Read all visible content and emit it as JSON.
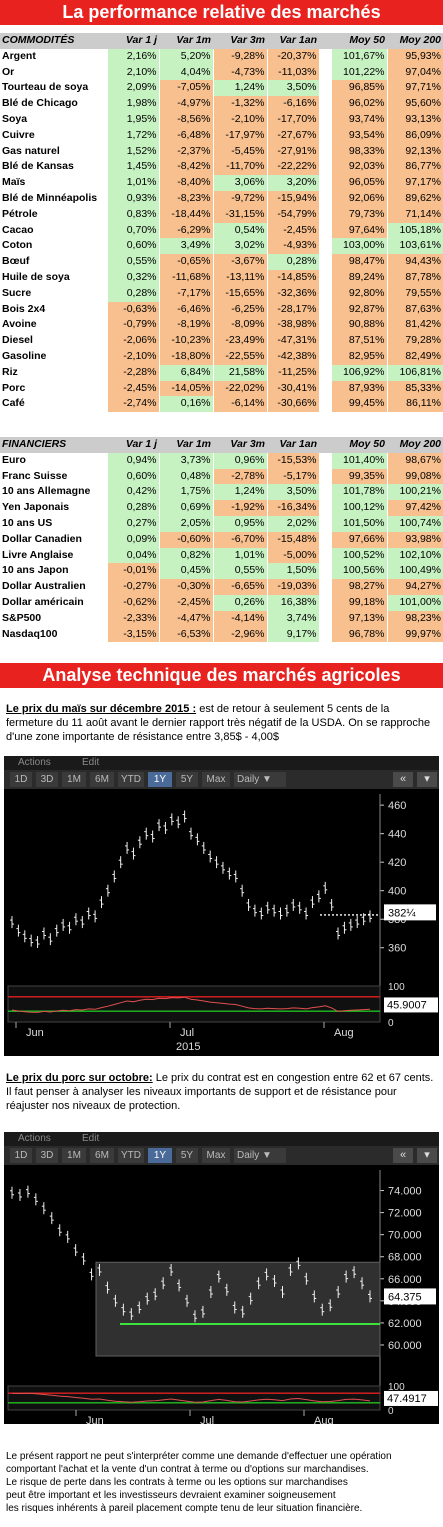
{
  "title": "La performance relative des marchés",
  "commodities": {
    "header": [
      "COMMODITÉS",
      "Var 1 j",
      "Var 1m",
      "Var 3m",
      "Var 1an",
      "",
      "Moy 50",
      "Moy 200"
    ],
    "rows": [
      [
        "Argent",
        "2,16%",
        "5,20%",
        "-9,28%",
        "-20,37%",
        "101,67%",
        "95,93%"
      ],
      [
        "Or",
        "2,10%",
        "4,04%",
        "-4,73%",
        "-11,03%",
        "101,22%",
        "97,04%"
      ],
      [
        "Tourteau de soya",
        "2,09%",
        "-7,05%",
        "1,24%",
        "3,50%",
        "96,85%",
        "97,71%"
      ],
      [
        "Blé de Chicago",
        "1,98%",
        "-4,97%",
        "-1,32%",
        "-6,16%",
        "96,02%",
        "95,60%"
      ],
      [
        "Soya",
        "1,95%",
        "-8,56%",
        "-2,10%",
        "-17,70%",
        "93,74%",
        "93,13%"
      ],
      [
        "Cuivre",
        "1,72%",
        "-6,48%",
        "-17,97%",
        "-27,67%",
        "93,54%",
        "86,09%"
      ],
      [
        "Gas naturel",
        "1,52%",
        "-2,37%",
        "-5,45%",
        "-27,91%",
        "98,33%",
        "92,13%"
      ],
      [
        "Blé de Kansas",
        "1,45%",
        "-8,42%",
        "-11,70%",
        "-22,22%",
        "92,03%",
        "86,77%"
      ],
      [
        "Maïs",
        "1,01%",
        "-8,40%",
        "3,06%",
        "3,20%",
        "96,05%",
        "97,17%"
      ],
      [
        "Blé de Minnéapolis",
        "0,93%",
        "-8,23%",
        "-9,72%",
        "-15,94%",
        "92,06%",
        "89,62%"
      ],
      [
        "Pétrole",
        "0,83%",
        "-18,44%",
        "-31,15%",
        "-54,79%",
        "79,73%",
        "71,14%"
      ],
      [
        "Cacao",
        "0,70%",
        "-6,29%",
        "0,54%",
        "-2,45%",
        "97,64%",
        "105,18%"
      ],
      [
        "Coton",
        "0,60%",
        "3,49%",
        "3,02%",
        "-4,93%",
        "103,00%",
        "103,61%"
      ],
      [
        "Bœuf",
        "0,55%",
        "-0,65%",
        "-3,67%",
        "0,28%",
        "98,47%",
        "94,43%"
      ],
      [
        "Huile de soya",
        "0,32%",
        "-11,68%",
        "-13,11%",
        "-14,85%",
        "89,24%",
        "87,78%"
      ],
      [
        "Sucre",
        "0,28%",
        "-7,17%",
        "-15,65%",
        "-32,36%",
        "92,80%",
        "79,55%"
      ],
      [
        "Bois 2x4",
        "-0,63%",
        "-6,46%",
        "-6,25%",
        "-28,17%",
        "92,87%",
        "87,63%"
      ],
      [
        "Avoine",
        "-0,79%",
        "-8,19%",
        "-8,09%",
        "-38,98%",
        "90,88%",
        "81,42%"
      ],
      [
        "Diesel",
        "-2,06%",
        "-10,23%",
        "-23,49%",
        "-47,31%",
        "87,51%",
        "79,28%"
      ],
      [
        "Gasoline",
        "-2,10%",
        "-18,80%",
        "-22,55%",
        "-42,38%",
        "82,95%",
        "82,49%"
      ],
      [
        "Riz",
        "-2,28%",
        "6,84%",
        "21,58%",
        "-11,25%",
        "106,92%",
        "106,81%"
      ],
      [
        "Porc",
        "-2,45%",
        "-14,05%",
        "-22,02%",
        "-30,41%",
        "87,93%",
        "85,33%"
      ],
      [
        "Café",
        "-2,74%",
        "0,16%",
        "-6,14%",
        "-30,66%",
        "99,45%",
        "86,11%"
      ]
    ],
    "colors": [
      [
        "g",
        "g",
        "o",
        "o",
        "g",
        "o"
      ],
      [
        "g",
        "g",
        "o",
        "o",
        "g",
        "o"
      ],
      [
        "g",
        "o",
        "g",
        "g",
        "o",
        "o"
      ],
      [
        "g",
        "o",
        "o",
        "o",
        "o",
        "o"
      ],
      [
        "g",
        "o",
        "o",
        "o",
        "o",
        "o"
      ],
      [
        "g",
        "o",
        "o",
        "o",
        "o",
        "o"
      ],
      [
        "g",
        "o",
        "o",
        "o",
        "o",
        "o"
      ],
      [
        "g",
        "o",
        "o",
        "o",
        "o",
        "o"
      ],
      [
        "g",
        "o",
        "g",
        "g",
        "o",
        "o"
      ],
      [
        "g",
        "o",
        "o",
        "o",
        "o",
        "o"
      ],
      [
        "g",
        "o",
        "o",
        "o",
        "o",
        "o"
      ],
      [
        "g",
        "o",
        "g",
        "o",
        "o",
        "g"
      ],
      [
        "g",
        "g",
        "g",
        "o",
        "g",
        "g"
      ],
      [
        "g",
        "o",
        "o",
        "g",
        "o",
        "o"
      ],
      [
        "g",
        "o",
        "o",
        "o",
        "o",
        "o"
      ],
      [
        "g",
        "o",
        "o",
        "o",
        "o",
        "o"
      ],
      [
        "o",
        "o",
        "o",
        "o",
        "o",
        "o"
      ],
      [
        "o",
        "o",
        "o",
        "o",
        "o",
        "o"
      ],
      [
        "o",
        "o",
        "o",
        "o",
        "o",
        "o"
      ],
      [
        "o",
        "o",
        "o",
        "o",
        "o",
        "o"
      ],
      [
        "o",
        "g",
        "g",
        "o",
        "g",
        "g"
      ],
      [
        "o",
        "o",
        "o",
        "o",
        "o",
        "o"
      ],
      [
        "o",
        "g",
        "o",
        "o",
        "o",
        "o"
      ]
    ]
  },
  "financials": {
    "header": [
      "FINANCIERS",
      "Var 1 j",
      "Var 1m",
      "Var 3m",
      "Var 1an",
      "",
      "Moy 50",
      "Moy 200"
    ],
    "rows": [
      [
        "Euro",
        "0,94%",
        "3,73%",
        "0,96%",
        "-15,53%",
        "101,40%",
        "98,67%"
      ],
      [
        "Franc Suisse",
        "0,60%",
        "0,48%",
        "-2,78%",
        "-5,17%",
        "99,35%",
        "99,08%"
      ],
      [
        "10 ans Allemagne",
        "0,42%",
        "1,75%",
        "1,24%",
        "3,50%",
        "101,78%",
        "100,21%"
      ],
      [
        "Yen Japonais",
        "0,28%",
        "0,69%",
        "-1,92%",
        "-16,34%",
        "100,12%",
        "97,42%"
      ],
      [
        "10 ans US",
        "0,27%",
        "2,05%",
        "0,95%",
        "2,02%",
        "101,50%",
        "100,74%"
      ],
      [
        "Dollar Canadien",
        "0,09%",
        "-0,60%",
        "-6,70%",
        "-15,48%",
        "97,66%",
        "93,98%"
      ],
      [
        "Livre Anglaise",
        "0,04%",
        "0,82%",
        "1,01%",
        "-5,00%",
        "100,52%",
        "102,10%"
      ],
      [
        "10 ans Japon",
        "-0,01%",
        "0,45%",
        "0,55%",
        "1,50%",
        "100,56%",
        "100,49%"
      ],
      [
        "Dollar Australien",
        "-0,27%",
        "-0,30%",
        "-6,65%",
        "-19,03%",
        "98,27%",
        "94,27%"
      ],
      [
        "Dollar américain",
        "-0,62%",
        "-2,45%",
        "0,26%",
        "16,38%",
        "99,18%",
        "101,00%"
      ],
      [
        "S&P500",
        "-2,33%",
        "-4,47%",
        "-4,14%",
        "3,74%",
        "97,13%",
        "98,23%"
      ],
      [
        "Nasdaq100",
        "-3,15%",
        "-6,53%",
        "-2,96%",
        "9,17%",
        "96,78%",
        "99,97%"
      ]
    ],
    "colors": [
      [
        "g",
        "g",
        "g",
        "o",
        "g",
        "o"
      ],
      [
        "g",
        "g",
        "o",
        "o",
        "o",
        "o"
      ],
      [
        "g",
        "g",
        "g",
        "g",
        "g",
        "g"
      ],
      [
        "g",
        "g",
        "o",
        "o",
        "g",
        "o"
      ],
      [
        "g",
        "g",
        "g",
        "g",
        "g",
        "g"
      ],
      [
        "g",
        "o",
        "o",
        "o",
        "o",
        "o"
      ],
      [
        "g",
        "g",
        "g",
        "o",
        "g",
        "g"
      ],
      [
        "o",
        "g",
        "g",
        "g",
        "g",
        "g"
      ],
      [
        "o",
        "o",
        "o",
        "o",
        "o",
        "o"
      ],
      [
        "o",
        "o",
        "g",
        "g",
        "o",
        "g"
      ],
      [
        "o",
        "o",
        "o",
        "g",
        "o",
        "o"
      ],
      [
        "o",
        "o",
        "o",
        "g",
        "o",
        "o"
      ]
    ]
  },
  "section2_title": "Analyse technique des marchés agricoles",
  "para1": {
    "lead": "Le prix du maïs sur décembre 2015 :",
    "text": "  est de retour à seulement 5 cents de la fermeture du 11 août avant le dernier rapport très négatif de la USDA. On se rapproche d'une zone importante de résistance entre 3,85$ - 4,00$"
  },
  "chart1": {
    "menu": [
      "Actions",
      "Edit"
    ],
    "ranges": [
      "1D",
      "3D",
      "1M",
      "6M",
      "YTD",
      "1Y",
      "5Y",
      "Max"
    ],
    "selected": "1Y",
    "period_label": "Daily",
    "y_ticks": [
      "460",
      "440",
      "420",
      "400",
      "380",
      "360"
    ],
    "last_price": "382¼",
    "osc_ticks": [
      "100",
      "50",
      "0"
    ],
    "osc_value": "45.9007",
    "x_labels": [
      "Jun",
      "Jul",
      "Aug"
    ],
    "year": "2015",
    "prices": [
      378,
      372,
      368,
      365,
      364,
      370,
      366,
      372,
      376,
      374,
      380,
      378,
      384,
      382,
      392,
      400,
      410,
      420,
      430,
      426,
      434,
      440,
      438,
      446,
      444,
      450,
      448,
      452,
      440,
      436,
      430,
      424,
      420,
      416,
      412,
      410,
      400,
      390,
      386,
      384,
      388,
      386,
      384,
      386,
      390,
      388,
      384,
      392,
      396,
      402,
      390,
      370,
      374,
      376,
      378,
      380,
      382
    ],
    "ylim": [
      350,
      465
    ]
  },
  "para2": {
    "lead": "Le prix du porc sur octobre:",
    "text": "  Le prix du contrat est en congestion entre 62 et 67 cents. Il faut penser à analyser les niveaux importants de support et de résistance pour réajuster nos niveaux de protection."
  },
  "chart2": {
    "menu": [
      "Actions",
      "Edit"
    ],
    "ranges": [
      "1D",
      "3D",
      "1M",
      "6M",
      "YTD",
      "1Y",
      "5Y",
      "Max"
    ],
    "selected": "1Y",
    "period_label": "Daily",
    "y_ticks": [
      "74.000",
      "72.000",
      "70.000",
      "68.000",
      "66.000",
      "64.000",
      "62.000",
      "60.000"
    ],
    "last_price": "64.375",
    "osc_ticks": [
      "100",
      "50",
      "0"
    ],
    "osc_value": "47.4917",
    "x_labels": [
      "Jun",
      "Jul",
      "Aug"
    ],
    "year": "2015",
    "prices": [
      73.8,
      73.6,
      73.9,
      73.2,
      72.4,
      71.5,
      70.4,
      69.8,
      68.6,
      67.8,
      66.4,
      66.8,
      65.2,
      64.0,
      63.2,
      62.8,
      63.4,
      64.2,
      64.6,
      65.6,
      66.8,
      65.4,
      64.0,
      62.6,
      63.0,
      64.8,
      66.2,
      65.0,
      63.4,
      63.0,
      64.2,
      65.6,
      66.4,
      65.8,
      64.8,
      66.8,
      67.4,
      66.0,
      64.4,
      63.2,
      63.6,
      64.8,
      66.2,
      66.6,
      65.6,
      64.4
    ],
    "ylim": [
      59,
      75.5
    ]
  },
  "footer_lines": [
    "Le présent rapport ne peut s'interpréter comme une demande d'effectuer une opération",
    "comportant l'achat et la vente d'un contrat à terme ou d'options sur marchandises.",
    "Le risque de perte dans les contrats à terme ou les options sur marchandises",
    "peut être important et les investisseurs devraient examiner soigneusement",
    "les risques inhérents à pareil placement compte tenu de leur situation financière."
  ]
}
